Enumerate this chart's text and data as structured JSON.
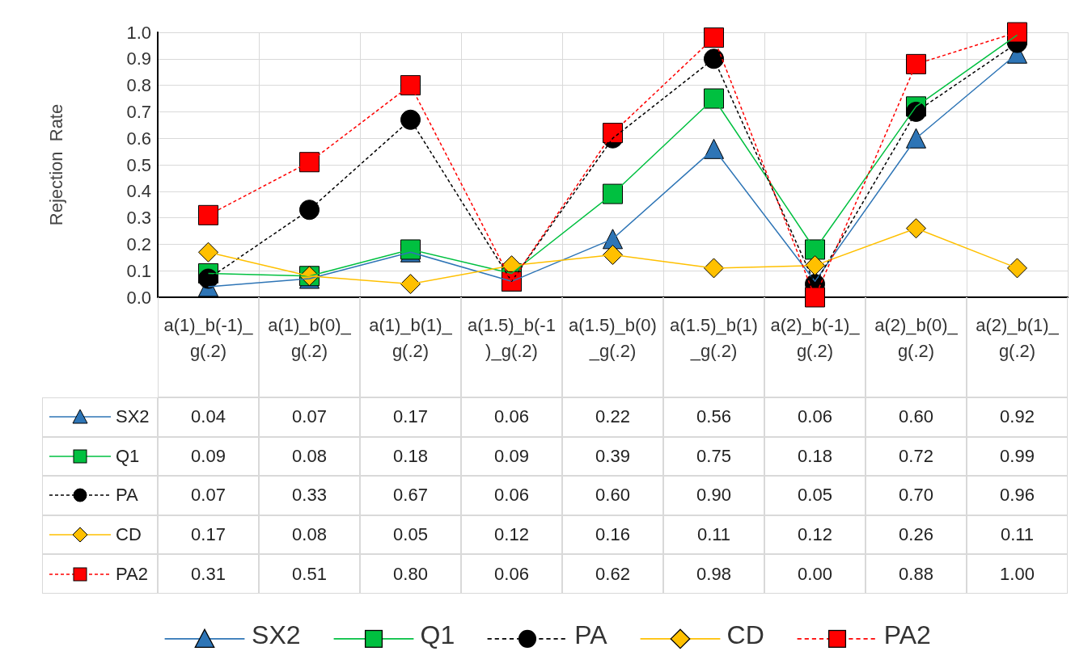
{
  "chart_data": {
    "type": "line",
    "ylabel": "Rejection  Rate",
    "categories": [
      "a(1)_b(-1)_g(.2)",
      "a(1)_b(0)_g(.2)",
      "a(1)_b(1)_g(.2)",
      "a(1.5)_b(-1)_g(.2)",
      "a(1.5)_b(0)_g(.2)",
      "a(1.5)_b(1)_g(.2)",
      "a(2)_b(-1)_g(.2)",
      "a(2)_b(0)_g(.2)",
      "a(2)_b(1)_g(.2)"
    ],
    "series": [
      {
        "name": "SX2",
        "color": "#2e75b6",
        "marker": "triangle",
        "line_style": "solid",
        "values": [
          0.04,
          0.07,
          0.17,
          0.06,
          0.22,
          0.56,
          0.06,
          0.6,
          0.92
        ],
        "value_labels": [
          "0.04",
          "0.07",
          "0.17",
          "0.06",
          "0.22",
          "0.56",
          "0.06",
          "0.60",
          "0.92"
        ]
      },
      {
        "name": "Q1",
        "color": "#00c040",
        "marker": "square",
        "line_style": "solid",
        "values": [
          0.09,
          0.08,
          0.18,
          0.09,
          0.39,
          0.75,
          0.18,
          0.72,
          0.99
        ],
        "value_labels": [
          "0.09",
          "0.08",
          "0.18",
          "0.09",
          "0.39",
          "0.75",
          "0.18",
          "0.72",
          "0.99"
        ]
      },
      {
        "name": "PA",
        "color": "#000000",
        "marker": "circle",
        "line_style": "dashed",
        "values": [
          0.07,
          0.33,
          0.67,
          0.06,
          0.6,
          0.9,
          0.05,
          0.7,
          0.96
        ],
        "value_labels": [
          "0.07",
          "0.33",
          "0.67",
          "0.06",
          "0.60",
          "0.90",
          "0.05",
          "0.70",
          "0.96"
        ]
      },
      {
        "name": "CD",
        "color": "#ffc000",
        "marker": "diamond",
        "line_style": "solid",
        "values": [
          0.17,
          0.08,
          0.05,
          0.12,
          0.16,
          0.11,
          0.12,
          0.26,
          0.11
        ],
        "value_labels": [
          "0.17",
          "0.08",
          "0.05",
          "0.12",
          "0.16",
          "0.11",
          "0.12",
          "0.26",
          "0.11"
        ]
      },
      {
        "name": "PA2",
        "color": "#ff0000",
        "marker": "square",
        "line_style": "dashed",
        "values": [
          0.31,
          0.51,
          0.8,
          0.06,
          0.62,
          0.98,
          0.0,
          0.88,
          1.0
        ],
        "value_labels": [
          "0.31",
          "0.51",
          "0.80",
          "0.06",
          "0.62",
          "0.98",
          "0.00",
          "0.88",
          "1.00"
        ]
      }
    ],
    "ylim": [
      0,
      1
    ],
    "yticks": [
      {
        "value": 0,
        "label": "0.0"
      },
      {
        "value": 0.1,
        "label": "0.1"
      },
      {
        "value": 0.2,
        "label": "0.2"
      },
      {
        "value": 0.3,
        "label": "0.3"
      },
      {
        "value": 0.4,
        "label": "0.4"
      },
      {
        "value": 0.5,
        "label": "0.5"
      },
      {
        "value": 0.6,
        "label": "0.6"
      },
      {
        "value": 0.7,
        "label": "0.7"
      },
      {
        "value": 0.8,
        "label": "0.8"
      },
      {
        "value": 0.9,
        "label": "0.9"
      },
      {
        "value": 1,
        "label": "1.0"
      }
    ],
    "grid": true,
    "legend": "bottom"
  }
}
